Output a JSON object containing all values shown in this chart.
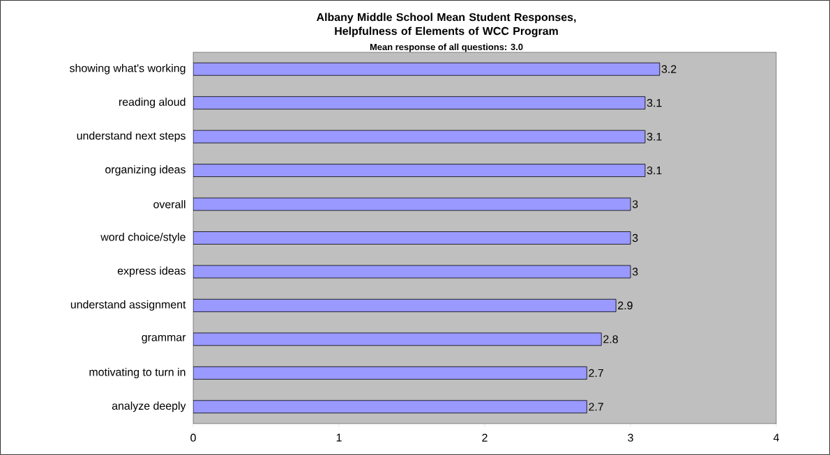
{
  "chart_data": {
    "type": "bar",
    "orientation": "horizontal",
    "title": "Albany Middle School Mean Student Responses, Helpfulness of Elements of WCC Program",
    "subtitle": "Mean response of all questions: 3.0",
    "categories": [
      "showing what's working",
      "reading aloud",
      "understand next steps",
      "organizing ideas",
      "overall",
      "word choice/style",
      "express ideas",
      "understand assignment",
      "grammar",
      "motivating to turn in",
      "analyze deeply"
    ],
    "values": [
      3.2,
      3.1,
      3.1,
      3.1,
      3,
      3,
      3,
      2.9,
      2.8,
      2.7,
      2.7
    ],
    "color": "#9999ff",
    "xlim": [
      0,
      4
    ],
    "xticks": [
      0,
      1,
      2,
      3,
      4
    ],
    "data_labels": true
  }
}
